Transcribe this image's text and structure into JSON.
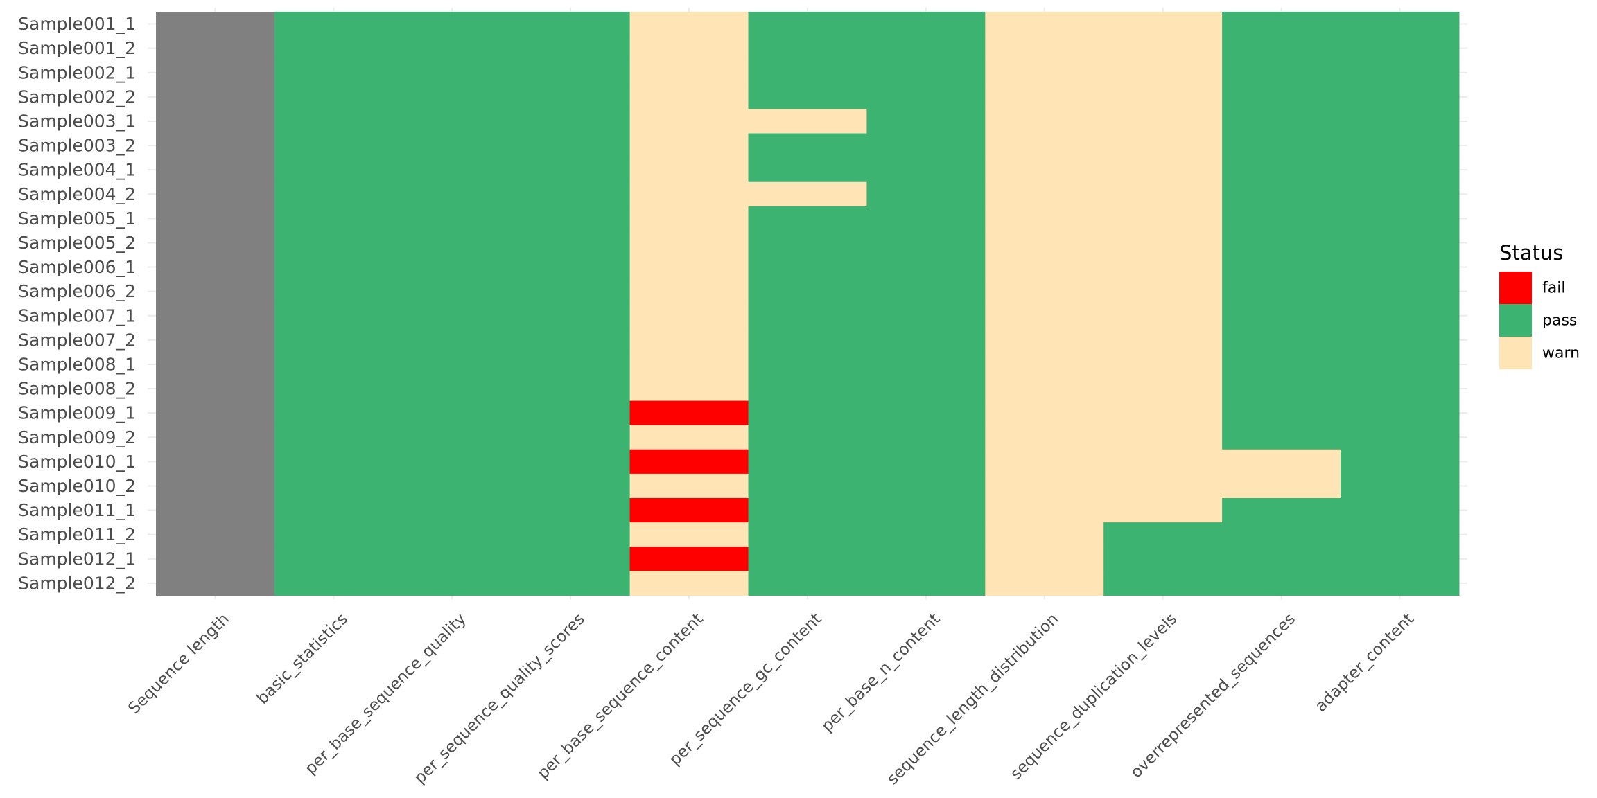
{
  "chart_data": {
    "type": "heatmap",
    "title": "",
    "xlabel": "",
    "ylabel": "",
    "x_categories": [
      "Sequence length",
      "basic_statistics",
      "per_base_sequence_quality",
      "per_sequence_quality_scores",
      "per_base_sequence_content",
      "per_sequence_gc_content",
      "per_base_n_content",
      "sequence_length_distribution",
      "sequence_duplication_levels",
      "overrepresented_sequences",
      "adapter_content"
    ],
    "y_categories": [
      "Sample001_1",
      "Sample001_2",
      "Sample002_1",
      "Sample002_2",
      "Sample003_1",
      "Sample003_2",
      "Sample004_1",
      "Sample004_2",
      "Sample005_1",
      "Sample005_2",
      "Sample006_1",
      "Sample006_2",
      "Sample007_1",
      "Sample007_2",
      "Sample008_1",
      "Sample008_2",
      "Sample009_1",
      "Sample009_2",
      "Sample010_1",
      "Sample010_2",
      "Sample011_1",
      "Sample011_2",
      "Sample012_1",
      "Sample012_2"
    ],
    "cells": [
      [
        "na",
        "pass",
        "pass",
        "pass",
        "warn",
        "pass",
        "pass",
        "warn",
        "warn",
        "pass",
        "pass"
      ],
      [
        "na",
        "pass",
        "pass",
        "pass",
        "warn",
        "pass",
        "pass",
        "warn",
        "warn",
        "pass",
        "pass"
      ],
      [
        "na",
        "pass",
        "pass",
        "pass",
        "warn",
        "pass",
        "pass",
        "warn",
        "warn",
        "pass",
        "pass"
      ],
      [
        "na",
        "pass",
        "pass",
        "pass",
        "warn",
        "pass",
        "pass",
        "warn",
        "warn",
        "pass",
        "pass"
      ],
      [
        "na",
        "pass",
        "pass",
        "pass",
        "warn",
        "warn",
        "pass",
        "warn",
        "warn",
        "pass",
        "pass"
      ],
      [
        "na",
        "pass",
        "pass",
        "pass",
        "warn",
        "pass",
        "pass",
        "warn",
        "warn",
        "pass",
        "pass"
      ],
      [
        "na",
        "pass",
        "pass",
        "pass",
        "warn",
        "pass",
        "pass",
        "warn",
        "warn",
        "pass",
        "pass"
      ],
      [
        "na",
        "pass",
        "pass",
        "pass",
        "warn",
        "warn",
        "pass",
        "warn",
        "warn",
        "pass",
        "pass"
      ],
      [
        "na",
        "pass",
        "pass",
        "pass",
        "warn",
        "pass",
        "pass",
        "warn",
        "warn",
        "pass",
        "pass"
      ],
      [
        "na",
        "pass",
        "pass",
        "pass",
        "warn",
        "pass",
        "pass",
        "warn",
        "warn",
        "pass",
        "pass"
      ],
      [
        "na",
        "pass",
        "pass",
        "pass",
        "warn",
        "pass",
        "pass",
        "warn",
        "warn",
        "pass",
        "pass"
      ],
      [
        "na",
        "pass",
        "pass",
        "pass",
        "warn",
        "pass",
        "pass",
        "warn",
        "warn",
        "pass",
        "pass"
      ],
      [
        "na",
        "pass",
        "pass",
        "pass",
        "warn",
        "pass",
        "pass",
        "warn",
        "warn",
        "pass",
        "pass"
      ],
      [
        "na",
        "pass",
        "pass",
        "pass",
        "warn",
        "pass",
        "pass",
        "warn",
        "warn",
        "pass",
        "pass"
      ],
      [
        "na",
        "pass",
        "pass",
        "pass",
        "warn",
        "pass",
        "pass",
        "warn",
        "warn",
        "pass",
        "pass"
      ],
      [
        "na",
        "pass",
        "pass",
        "pass",
        "warn",
        "pass",
        "pass",
        "warn",
        "warn",
        "pass",
        "pass"
      ],
      [
        "na",
        "pass",
        "pass",
        "pass",
        "fail",
        "pass",
        "pass",
        "warn",
        "warn",
        "pass",
        "pass"
      ],
      [
        "na",
        "pass",
        "pass",
        "pass",
        "warn",
        "pass",
        "pass",
        "warn",
        "warn",
        "pass",
        "pass"
      ],
      [
        "na",
        "pass",
        "pass",
        "pass",
        "fail",
        "pass",
        "pass",
        "warn",
        "warn",
        "warn",
        "pass"
      ],
      [
        "na",
        "pass",
        "pass",
        "pass",
        "warn",
        "pass",
        "pass",
        "warn",
        "warn",
        "warn",
        "pass"
      ],
      [
        "na",
        "pass",
        "pass",
        "pass",
        "fail",
        "pass",
        "pass",
        "warn",
        "warn",
        "pass",
        "pass"
      ],
      [
        "na",
        "pass",
        "pass",
        "pass",
        "warn",
        "pass",
        "pass",
        "warn",
        "pass",
        "pass",
        "pass"
      ],
      [
        "na",
        "pass",
        "pass",
        "pass",
        "fail",
        "pass",
        "pass",
        "warn",
        "pass",
        "pass",
        "pass"
      ],
      [
        "na",
        "pass",
        "pass",
        "pass",
        "warn",
        "pass",
        "pass",
        "warn",
        "pass",
        "pass",
        "pass"
      ]
    ],
    "colors": {
      "fail": "#ff0000",
      "pass": "#3cb371",
      "warn": "#ffe4b5",
      "na": "#808080"
    },
    "legend": {
      "title": "Status",
      "position": "right",
      "entries": [
        "fail",
        "pass",
        "warn"
      ]
    },
    "grid": true
  }
}
